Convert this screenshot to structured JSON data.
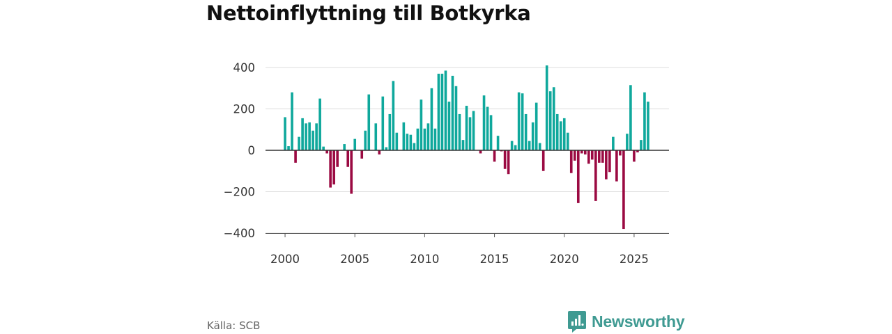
{
  "title": "Nettoinflyttning till Botkyrka",
  "source": "Källa: SCB",
  "brand": {
    "name": "Newsworthy",
    "icon": "newsworthy-logo-icon"
  },
  "colors": {
    "positive": "#0fa89c",
    "negative": "#9b0a42",
    "grid": "#dddddd",
    "zero": "#333333",
    "brand": "#3f9a92"
  },
  "chart_data": {
    "type": "bar",
    "title": "Nettoinflyttning till Botkyrka",
    "xlabel": "",
    "ylabel": "",
    "ylim": [
      -400,
      400
    ],
    "xlim": [
      1998.6,
      2027.5
    ],
    "yticks": [
      -400,
      -200,
      0,
      200,
      400
    ],
    "ytick_labels": [
      "−400",
      "−200",
      "0",
      "200",
      "400"
    ],
    "xticks": [
      2000,
      2005,
      2010,
      2015,
      2020,
      2025
    ],
    "xtick_labels": [
      "2000",
      "2005",
      "2010",
      "2015",
      "2020",
      "2025"
    ],
    "x_start": 2000,
    "periods_per_year": 4,
    "period": "quarter",
    "values": [
      160,
      20,
      280,
      -60,
      65,
      155,
      130,
      135,
      95,
      130,
      250,
      18,
      -15,
      -180,
      -165,
      -80,
      0,
      30,
      -80,
      -210,
      55,
      0,
      -40,
      95,
      270,
      0,
      130,
      -20,
      260,
      15,
      175,
      335,
      85,
      0,
      135,
      80,
      75,
      35,
      105,
      245,
      105,
      130,
      300,
      105,
      370,
      370,
      385,
      235,
      360,
      310,
      175,
      50,
      215,
      160,
      190,
      0,
      -15,
      265,
      210,
      170,
      -55,
      70,
      -5,
      -90,
      -115,
      45,
      25,
      280,
      275,
      175,
      45,
      135,
      230,
      35,
      -100,
      410,
      285,
      305,
      175,
      140,
      155,
      85,
      -110,
      -50,
      -255,
      -15,
      -20,
      -65,
      -45,
      -245,
      -60,
      -60,
      -140,
      -105,
      65,
      -150,
      -25,
      -380,
      80,
      315,
      -55,
      -10,
      50,
      280,
      235
    ]
  }
}
